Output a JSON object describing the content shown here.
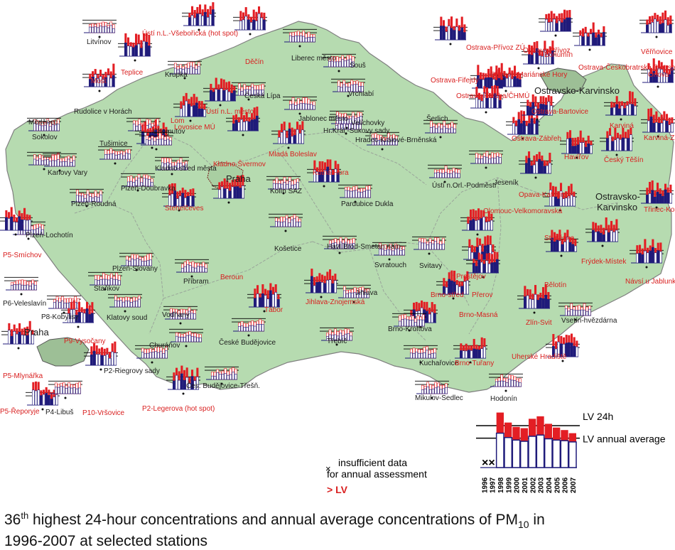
{
  "colors": {
    "land": "#b6dbb0",
    "border": "#8a8a8a",
    "region_border": "#9a9a9a",
    "city_fill": "#8fb08a",
    "lv24": "#e31e24",
    "annual": "#1f1a7a",
    "lv_text": "#d91f1f",
    "ok_text": "#1c1c1c"
  },
  "cities": [
    "Praha",
    "Ostravsko-Karvinsko",
    "Ostravsko-Karvinsko"
  ],
  "stations": [
    {
      "label": "Litvínov",
      "exceeds": false
    },
    {
      "label": "Ústí n.L.-Všebořická (hot spot)",
      "exceeds": true
    },
    {
      "label": "Teplice",
      "exceeds": true
    },
    {
      "label": "Krupka",
      "exceeds": false
    },
    {
      "label": "Děčín",
      "exceeds": true
    },
    {
      "label": "Liberec město",
      "exceeds": false
    },
    {
      "label": "Souš",
      "exceeds": false
    },
    {
      "label": "Most",
      "exceeds": true
    },
    {
      "label": "Česká Lípa",
      "exceeds": false
    },
    {
      "label": "Vrchlabí",
      "exceeds": false
    },
    {
      "label": "Rudolice v Horách",
      "exceeds": false
    },
    {
      "label": "Ústí n.L. město",
      "exceeds": true
    },
    {
      "label": "Jablonec město",
      "exceeds": false
    },
    {
      "label": "Velichovky",
      "exceeds": false
    },
    {
      "label": "Šerlich",
      "exceeds": false
    },
    {
      "label": "Měděnec",
      "exceeds": false
    },
    {
      "label": "Lom",
      "exceeds": true
    },
    {
      "label": "Chomutov",
      "exceeds": false
    },
    {
      "label": "Lovosice MÚ",
      "exceeds": true
    },
    {
      "label": "Mladá Boleslav",
      "exceeds": true
    },
    {
      "label": "Hr.Král.-Sukovy sady",
      "exceeds": false
    },
    {
      "label": "Hradec Králové-Brněnská",
      "exceeds": false
    },
    {
      "label": "Sokolov",
      "exceeds": false
    },
    {
      "label": "Tušimice",
      "exceeds": false
    },
    {
      "label": "Kladno-Švermov",
      "exceeds": true
    },
    {
      "label": "Karlovy Vary",
      "exceeds": false
    },
    {
      "label": "Kladno-střed města",
      "exceeds": false
    },
    {
      "label": "Kutná Hora",
      "exceeds": true
    },
    {
      "label": "Jeseník",
      "exceeds": false
    },
    {
      "label": "Plzeň-Doubravka",
      "exceeds": false
    },
    {
      "label": "Kolín SAZ",
      "exceeds": false
    },
    {
      "label": "Ústí n.Orl.-Podměstí",
      "exceeds": false
    },
    {
      "label": "Plzeň-Roudná",
      "exceeds": false
    },
    {
      "label": "Stehelčeves",
      "exceeds": true
    },
    {
      "label": "Pardubice Dukla",
      "exceeds": false
    },
    {
      "label": "Plzeň-Lochotín",
      "exceeds": false
    },
    {
      "label": "Košetice",
      "exceeds": false
    },
    {
      "label": "Havl.Brod-Smetan.nám.",
      "exceeds": false
    },
    {
      "label": "Svratouch",
      "exceeds": false
    },
    {
      "label": "Svitavy",
      "exceeds": false
    },
    {
      "label": "P5-Smíchov",
      "exceeds": true
    },
    {
      "label": "Plzeň-Slovany",
      "exceeds": false
    },
    {
      "label": "Beroun",
      "exceeds": true
    },
    {
      "label": "Příbram",
      "exceeds": false
    },
    {
      "label": "Jihlava-Znojemská",
      "exceeds": true
    },
    {
      "label": "Jihlava",
      "exceeds": false
    },
    {
      "label": "Prostějov",
      "exceeds": true
    },
    {
      "label": "Staňkov",
      "exceeds": false
    },
    {
      "label": "Brno-střed",
      "exceeds": true
    },
    {
      "label": "Přerov",
      "exceeds": true
    },
    {
      "label": "P6-Veleslavín",
      "exceeds": false
    },
    {
      "label": "Klatovy soud",
      "exceeds": false
    },
    {
      "label": "Vodňany",
      "exceeds": false
    },
    {
      "label": "Tábor",
      "exceeds": true
    },
    {
      "label": "P8-Kobylisy",
      "exceeds": false
    },
    {
      "label": "P9-Vysočany",
      "exceeds": true
    },
    {
      "label": "Brno-Masná",
      "exceeds": true
    },
    {
      "label": "Zlín-Svit",
      "exceeds": true
    },
    {
      "label": "Brno-Kroftova",
      "exceeds": false
    },
    {
      "label": "Vsetín-hvězdárna",
      "exceeds": false
    },
    {
      "label": "Churáňov",
      "exceeds": false
    },
    {
      "label": "České Budějovice",
      "exceeds": false
    },
    {
      "label": "Třebíč",
      "exceeds": false
    },
    {
      "label": "Uherské Hradiště",
      "exceeds": true
    },
    {
      "label": "P5-Mlynářka",
      "exceeds": true
    },
    {
      "label": "P2-Riegrovy sady",
      "exceeds": false
    },
    {
      "label": "Kuchařovice",
      "exceeds": false
    },
    {
      "label": "Brno-Tuřany",
      "exceeds": true
    },
    {
      "label": "Čes. Budějovice-Třešň.",
      "exceeds": false
    },
    {
      "label": "P5-Řeporyje",
      "exceeds": true
    },
    {
      "label": "P4-Libuš",
      "exceeds": false
    },
    {
      "label": "P10-Vršovice",
      "exceeds": true
    },
    {
      "label": "P2-Legerova (hot spot)",
      "exceeds": true
    },
    {
      "label": "Mikulov-Sedlec",
      "exceeds": false
    },
    {
      "label": "Hodonín",
      "exceeds": false
    },
    {
      "label": "Ostrava-Fifejdy",
      "exceeds": true
    },
    {
      "label": "Ostrava-Přívoz ZÚ",
      "exceeds": true
    },
    {
      "label": "Ostrava-Přívoz",
      "exceeds": true
    },
    {
      "label": "Bohumín",
      "exceeds": true
    },
    {
      "label": "Ostrava-Českobratrská (hot spot)",
      "exceeds": true
    },
    {
      "label": "Věřňovice",
      "exceeds": true
    },
    {
      "label": "Ostrava-Mariánské Hory",
      "exceeds": true
    },
    {
      "label": "Ostrava-Poruba/ČHMÚ",
      "exceeds": true
    },
    {
      "label": "Orlová",
      "exceeds": true
    },
    {
      "label": "Ostrava-Zábřeh",
      "exceeds": true
    },
    {
      "label": "Ostrava-Bartovice",
      "exceeds": true
    },
    {
      "label": "Karviná",
      "exceeds": true
    },
    {
      "label": "Karviná-ZÚ",
      "exceeds": true
    },
    {
      "label": "Havířov",
      "exceeds": true
    },
    {
      "label": "Český Těšín",
      "exceeds": true
    },
    {
      "label": "Opava-Kateřinky",
      "exceeds": true
    },
    {
      "label": "Třinec-Kosmos",
      "exceeds": true
    },
    {
      "label": "Olomouc-Velkomoravská",
      "exceeds": true
    },
    {
      "label": "Studénka",
      "exceeds": true
    },
    {
      "label": "Bělotín",
      "exceeds": true
    },
    {
      "label": "Frýdek-Místek",
      "exceeds": true
    },
    {
      "label": "Návsí u Jablunkova",
      "exceeds": true
    }
  ],
  "legend": {
    "lv24": "LV 24h",
    "lv_annual": "LV annual average",
    "insufficient_line1": "insufficient data",
    "insufficient_line2": "for annual assessment",
    "exceed": "> LV",
    "years": [
      "1996",
      "1997",
      "1998",
      "1999",
      "2000",
      "2001",
      "2002",
      "2003",
      "2004",
      "2005",
      "2006",
      "2007"
    ],
    "sample_24h": [
      null,
      null,
      88,
      72,
      65,
      63,
      78,
      82,
      70,
      64,
      60,
      55
    ],
    "sample_annual": [
      null,
      null,
      55,
      48,
      44,
      42,
      50,
      52,
      46,
      44,
      43,
      41
    ]
  },
  "caption": {
    "prefix": "36",
    "sup": "th",
    "middle": " highest 24-hour concentrations and annual average concentrations of PM",
    "sub": "10",
    "suffix": " in",
    "line2": "1996-2007 at selected stations"
  }
}
